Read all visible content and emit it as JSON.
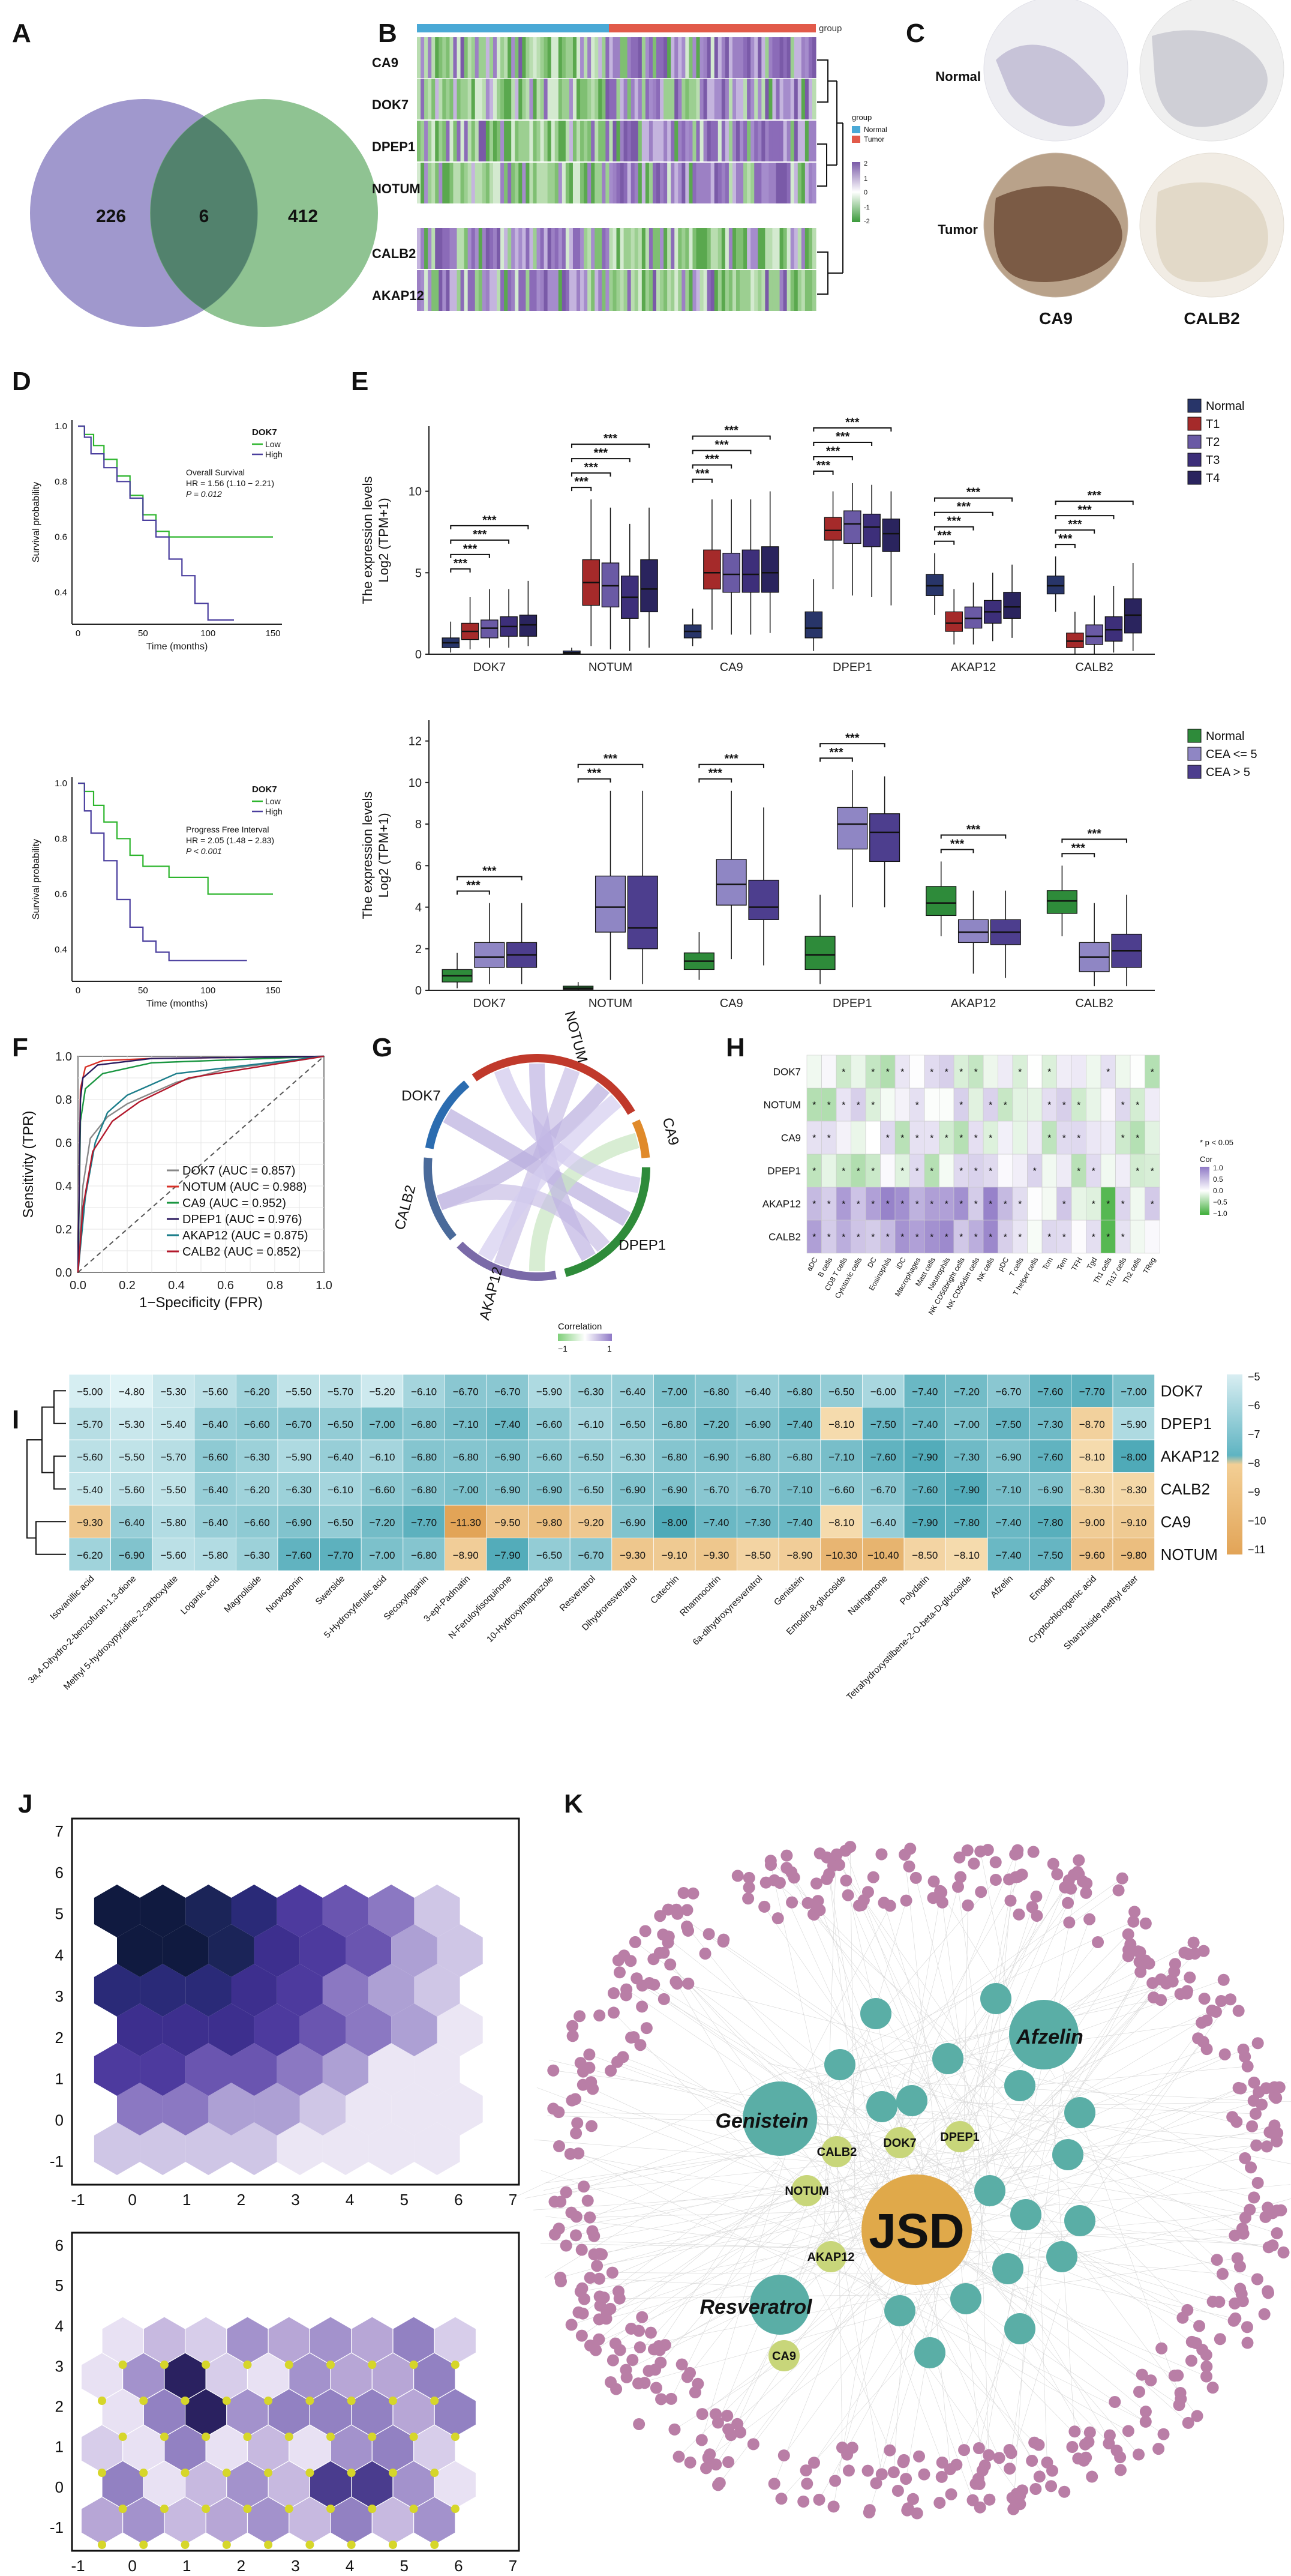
{
  "panel_letters": {
    "A": "A",
    "B": "B",
    "C": "C",
    "D": "D",
    "E": "E",
    "F": "F",
    "G": "G",
    "H": "H",
    "I": "I",
    "J": "J",
    "K": "K"
  },
  "panel_a": {
    "left": "226",
    "center": "6",
    "right": "412"
  },
  "panel_b": {
    "genes": [
      "CA9",
      "DOK7",
      "DPEP1",
      "NOTUM",
      "CALB2",
      "AKAP12"
    ],
    "legend_title": "group",
    "group_label": "group",
    "groups": [
      "Normal",
      "Tumor"
    ],
    "scale_ticks": [
      "2",
      "1",
      "0",
      "-1",
      "-2"
    ],
    "colors": {
      "normal": "#4aa9d6",
      "tumor": "#e25a4a",
      "high": "#7a5aa8",
      "low": "#3b9a3b"
    }
  },
  "panel_c": {
    "row_normal": "Normal",
    "row_tumor": "Tumor",
    "col1": "CA9",
    "col2": "CALB2"
  },
  "panel_d": {
    "top": {
      "ylabel": "Survival probability",
      "gene": "DOK7",
      "low": "Low",
      "high": "High",
      "stat1": "Overall Survival",
      "stat2": "HR = 1.56 (1.10 − 2.21)",
      "stat3": "P = 0.012",
      "xlabel": "Time (months)",
      "yticks": [
        "1.0",
        "0.8",
        "0.6",
        "0.4"
      ],
      "xticks": [
        "0",
        "50",
        "100",
        "150"
      ]
    },
    "bottom": {
      "ylabel": "Survival probability",
      "gene": "DOK7",
      "low": "Low",
      "high": "High",
      "stat1": "Progress Free Interval",
      "stat2": "HR = 2.05 (1.48 − 2.83)",
      "stat3": "P < 0.001",
      "xlabel": "Time (months)",
      "yticks": [
        "1.0",
        "0.8",
        "0.6",
        "0.4"
      ],
      "xticks": [
        "0",
        "50",
        "100",
        "150"
      ]
    }
  },
  "panel_e": {
    "ylabel": "The expression levels",
    "ylabel2": "Log2 (TPM+1)",
    "top_legend": [
      "Normal",
      "T1",
      "T2",
      "T3",
      "T4"
    ],
    "top_colors": [
      "#283569",
      "#a52a2a",
      "#6a5aa5",
      "#3d2f7a",
      "#2a245e"
    ],
    "bottom_legend": [
      "Normal",
      "CEA <= 5",
      "CEA > 5"
    ],
    "bottom_colors": [
      "#2e8b3a",
      "#8f86c4",
      "#4d3e8e"
    ],
    "genes": [
      "DOK7",
      "NOTUM",
      "CA9",
      "DPEP1",
      "AKAP12",
      "CALB2"
    ],
    "sig": "***",
    "top_yticks": [
      "0",
      "5",
      "10"
    ],
    "bottom_yticks": [
      "0",
      "2",
      "4",
      "6",
      "8",
      "10",
      "12"
    ]
  },
  "panel_f": {
    "ylabel": "Sensitivity (TPR)",
    "xlabel": "1−Specificity (FPR)",
    "ticks": [
      "0.0",
      "0.2",
      "0.4",
      "0.6",
      "0.8",
      "1.0"
    ],
    "legend": [
      {
        "label": "DOK7 (AUC = 0.857)",
        "color": "#888888"
      },
      {
        "label": "NOTUM (AUC = 0.988)",
        "color": "#d73027"
      },
      {
        "label": "CA9 (AUC = 0.952)",
        "color": "#1a9641"
      },
      {
        "label": "DPEP1 (AUC = 0.976)",
        "color": "#2b1a5e"
      },
      {
        "label": "AKAP12 (AUC = 0.875)",
        "color": "#1b7d8a"
      },
      {
        "label": "CALB2 (AUC = 0.852)",
        "color": "#b2182b"
      }
    ]
  },
  "panel_g": {
    "labels": [
      "DOK7",
      "NOTUM",
      "CA9",
      "DPEP1",
      "AKAP12",
      "CALB2"
    ],
    "legend_title": "Correlation",
    "legend_min": "−1",
    "legend_max": "1"
  },
  "panel_h": {
    "rows": [
      "DOK7",
      "NOTUM",
      "CA9",
      "DPEP1",
      "AKAP12",
      "CALB2"
    ],
    "cols": [
      "aDC",
      "B cells",
      "CD8 T cells",
      "Cytotoxic cells",
      "DC",
      "Eosinophils",
      "iDC",
      "Macrophages",
      "Mast cells",
      "Neutrophils",
      "NK CD56bright cells",
      "NK CD56dim cells",
      "NK cells",
      "pDC",
      "T cells",
      "T helper cells",
      "Tcm",
      "Tem",
      "TFH",
      "Tgd",
      "Th1 cells",
      "Th17 cells",
      "Th2 cells",
      "TReg"
    ],
    "legend_note": "* p < 0.05",
    "legend_title": "Cor",
    "legend_ticks": [
      "1.0",
      "0.5",
      "0.0",
      "−0.5",
      "−1.0"
    ]
  },
  "panel_i": {
    "rows": [
      "DOK7",
      "DPEP1",
      "AKAP12",
      "CALB2",
      "CA9",
      "NOTUM"
    ],
    "cols": [
      "Isovanillic acid",
      "3a,4-Dihydro-2-benzofuran-1,3-dione",
      "Methyl 5-hydroxypyridine-2-carboxylate",
      "Loganic acid",
      "Magnoliside",
      "Norwogonin",
      "Swerside",
      "5-Hydroxyferulic acid",
      "Secoxyloganin",
      "3-epi-Padmatin",
      "N-Feruloylisoquinone",
      "10-Hydroxyimaprazole",
      "Resveratrol",
      "Dihydroresveratrol",
      "Catechin",
      "Rhamnocitrin",
      "6a-dihydroxyresveratrol",
      "Genistein",
      "Emodin-8-glucoside",
      "Naringenone",
      "Polydatin",
      "Tetrahydroxystilbene-2-O-beta-D-glucoside",
      "Afzelin",
      "Emodin",
      "Cryptochlorogenic acid",
      "Shanzhiside methyl ester"
    ],
    "values": [
      [
        "−5.00",
        "−4.80",
        "−5.30",
        "−5.60",
        "−6.20",
        "−5.50",
        "−5.70",
        "−5.20",
        "−6.10",
        "−6.70",
        "−6.70",
        "−5.90",
        "−6.30",
        "−6.40",
        "−7.00",
        "−6.80",
        "−6.40",
        "−6.80",
        "−6.50",
        "−6.00",
        "−7.40",
        "−7.20",
        "−6.70",
        "−7.60",
        "−7.70",
        "−7.00"
      ],
      [
        "−5.70",
        "−5.30",
        "−5.40",
        "−6.40",
        "−6.60",
        "−6.70",
        "−6.50",
        "−7.00",
        "−6.80",
        "−7.10",
        "−7.40",
        "−6.60",
        "−6.10",
        "−6.50",
        "−6.80",
        "−7.20",
        "−6.90",
        "−7.40",
        "−8.10",
        "−7.50",
        "−7.40",
        "−7.00",
        "−7.50",
        "−7.30",
        "−8.70",
        "−5.90"
      ],
      [
        "−5.60",
        "−5.50",
        "−5.70",
        "−6.60",
        "−6.30",
        "−5.90",
        "−6.40",
        "−6.10",
        "−6.80",
        "−6.80",
        "−6.90",
        "−6.60",
        "−6.50",
        "−6.30",
        "−6.80",
        "−6.90",
        "−6.80",
        "−6.80",
        "−7.10",
        "−7.60",
        "−7.90",
        "−7.30",
        "−6.90",
        "−7.60",
        "−8.10",
        "−8.00"
      ],
      [
        "−5.40",
        "−5.60",
        "−5.50",
        "−6.40",
        "−6.20",
        "−6.30",
        "−6.10",
        "−6.60",
        "−6.80",
        "−7.00",
        "−6.90",
        "−6.90",
        "−6.50",
        "−6.90",
        "−6.90",
        "−6.70",
        "−6.70",
        "−7.10",
        "−6.60",
        "−6.70",
        "−7.60",
        "−7.90",
        "−7.10",
        "−6.90",
        "−8.30",
        "−8.30"
      ],
      [
        "−9.30",
        "−6.40",
        "−5.80",
        "−6.40",
        "−6.60",
        "−6.90",
        "−6.50",
        "−7.20",
        "−7.70",
        "−11.30",
        "−9.50",
        "−9.80",
        "−9.20",
        "−6.90",
        "−8.00",
        "−7.40",
        "−7.30",
        "−7.40",
        "−8.10",
        "−6.40",
        "−7.90",
        "−7.80",
        "−7.40",
        "−7.80",
        "−9.00",
        "−9.10"
      ],
      [
        "−6.20",
        "−6.90",
        "−5.60",
        "−5.80",
        "−6.30",
        "−7.60",
        "−7.70",
        "−7.00",
        "−6.80",
        "−8.90",
        "−7.90",
        "−6.50",
        "−6.70",
        "−9.30",
        "−9.10",
        "−9.30",
        "−8.50",
        "−8.90",
        "−10.30",
        "−10.40",
        "−8.50",
        "−8.10",
        "−7.40",
        "−7.50",
        "−9.60",
        "−9.80"
      ]
    ],
    "legend_ticks": [
      "−5",
      "−6",
      "−7",
      "−8",
      "−9",
      "−10",
      "−11"
    ]
  },
  "panel_j": {
    "top_xticks": [
      "-1",
      "0",
      "1",
      "2",
      "3",
      "4",
      "5",
      "6",
      "7"
    ],
    "top_yticks": [
      "7",
      "6",
      "5",
      "4",
      "3",
      "2",
      "1",
      "0",
      "-1"
    ],
    "bottom_xticks": [
      "-1",
      "0",
      "1",
      "2",
      "3",
      "4",
      "5",
      "6",
      "7"
    ],
    "bottom_yticks": [
      "6",
      "5",
      "4",
      "3",
      "2",
      "1",
      "0",
      "-1"
    ]
  },
  "panel_k": {
    "center": "JSD",
    "herbs": [
      "Afzelin",
      "Genistein",
      "Resveratrol"
    ],
    "targets": [
      "CALB2",
      "DOK7",
      "DPEP1",
      "NOTUM",
      "AKAP12",
      "CA9"
    ],
    "colors": {
      "center": "#e0a94a",
      "herb": "#5aaea6",
      "target": "#c8d67a",
      "gene": "#b97ea6"
    }
  }
}
